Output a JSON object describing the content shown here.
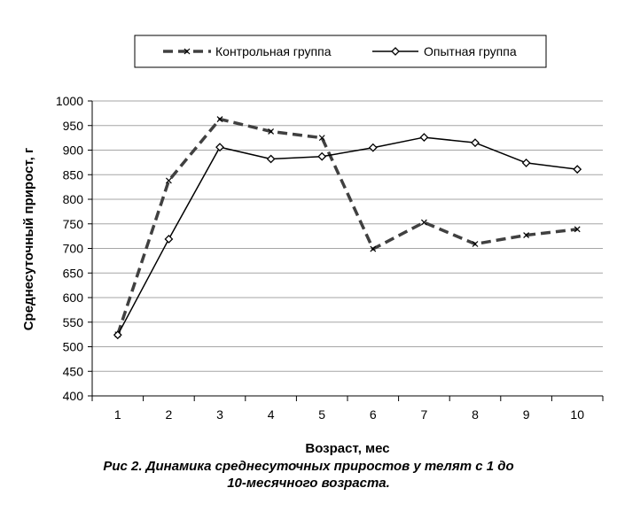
{
  "chart_data": {
    "type": "line",
    "x": [
      1,
      2,
      3,
      4,
      5,
      6,
      7,
      8,
      9,
      10
    ],
    "xlabel": "Возраст, мес",
    "ylabel": "Среднесуточный прирост, г",
    "ylim": [
      400,
      1000
    ],
    "yticks": [
      400,
      450,
      500,
      550,
      600,
      650,
      700,
      750,
      800,
      850,
      900,
      950,
      1000
    ],
    "xtick_labels": [
      "1",
      "2",
      "3",
      "4",
      "5",
      "6",
      "7",
      "8",
      "9",
      "10"
    ],
    "grid": "horizontal",
    "legend_position": "top",
    "series": [
      {
        "name": "Контрольная  группа",
        "values": [
          525,
          838,
          963,
          938,
          925,
          699,
          753,
          709,
          727,
          739
        ],
        "color": "#404040",
        "line_style": "dashed",
        "marker": "x"
      },
      {
        "name": "Опытная  группа",
        "values": [
          524,
          719,
          906,
          882,
          887,
          905,
          926,
          915,
          874,
          861
        ],
        "color": "#000000",
        "line_style": "solid",
        "marker": "diamond"
      }
    ]
  },
  "caption": {
    "line1": "Рис 2. Динамика среднесуточных  приростов  у телят с 1 до",
    "line2": "10-месячного возраста."
  }
}
